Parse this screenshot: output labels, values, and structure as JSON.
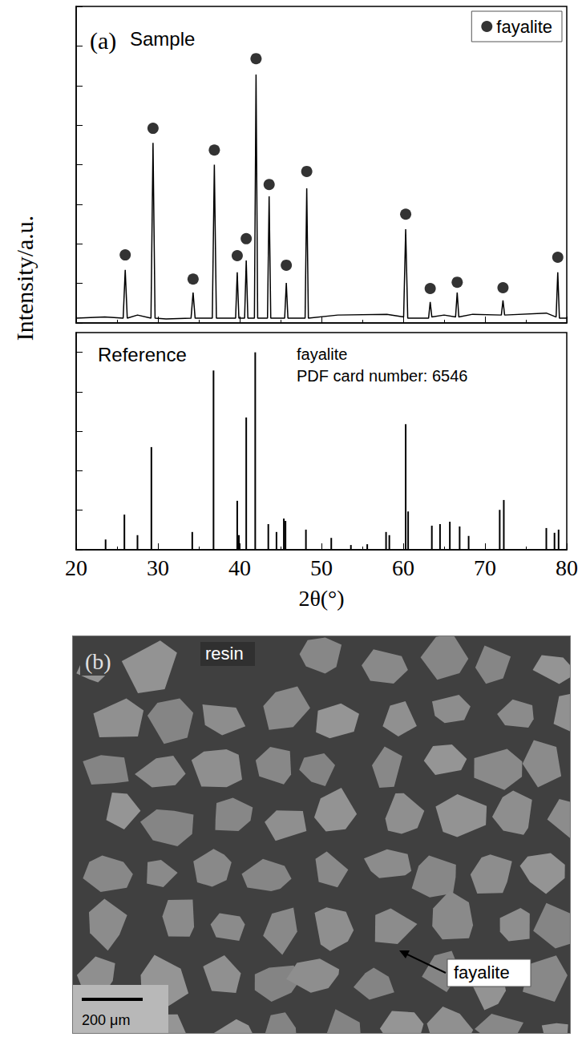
{
  "chart_data": [
    {
      "type": "line",
      "panel_label": "(a)",
      "title": "Sample",
      "ylabel": "Intensity/a.u.",
      "xlim": [
        20,
        80
      ],
      "xticks": [
        20,
        30,
        40,
        50,
        60,
        70,
        80
      ],
      "ylim": [
        0,
        8
      ],
      "yticks": [
        0,
        1,
        2,
        3,
        4,
        5,
        6,
        7,
        8
      ],
      "tick_labels": false,
      "grid": false,
      "legend": "upper right",
      "series": [
        {
          "type": "line",
          "color": "#000000",
          "line_style": "solid",
          "x": [
            20,
            23.5,
            25.75,
            26.0,
            26.25,
            27.5,
            29.15,
            29.4,
            29.65,
            31.0,
            34.05,
            34.3,
            34.55,
            36.65,
            36.9,
            37.15,
            39.5,
            39.7,
            39.9,
            40.6,
            40.8,
            41.0,
            41.8,
            42.0,
            42.2,
            43.4,
            43.6,
            43.8,
            45.5,
            45.7,
            45.9,
            48.0,
            48.2,
            48.4,
            52.0,
            58.0,
            60.05,
            60.3,
            60.55,
            63.1,
            63.3,
            63.5,
            65.0,
            66.4,
            66.6,
            66.8,
            68.5,
            72.0,
            72.2,
            72.4,
            77.5,
            78.7,
            78.9,
            79.1,
            80
          ],
          "values": [
            0.12,
            0.15,
            0.12,
            1.34,
            0.12,
            0.2,
            0.12,
            4.55,
            0.12,
            0.1,
            0.12,
            0.77,
            0.12,
            0.12,
            4.0,
            0.12,
            0.12,
            1.28,
            0.12,
            0.12,
            1.58,
            0.12,
            0.12,
            6.28,
            0.12,
            0.12,
            3.2,
            0.12,
            0.12,
            1.01,
            0.12,
            0.12,
            3.4,
            0.12,
            0.2,
            0.22,
            0.15,
            2.37,
            0.12,
            0.12,
            0.53,
            0.15,
            0.2,
            0.15,
            0.77,
            0.15,
            0.22,
            0.2,
            0.57,
            0.2,
            0.25,
            0.15,
            1.28,
            0.12,
            0.12
          ]
        },
        {
          "name": "fayalite",
          "type": "scatter",
          "marker": "circle",
          "color": "#000000",
          "x": [
            26.0,
            29.4,
            34.3,
            36.9,
            39.7,
            40.8,
            42.0,
            43.6,
            45.7,
            48.2,
            60.3,
            63.3,
            66.6,
            72.2,
            78.9
          ],
          "values": [
            1.72,
            4.92,
            1.11,
            4.37,
            1.7,
            2.13,
            6.68,
            3.5,
            1.46,
            3.83,
            2.75,
            0.87,
            1.03,
            0.89,
            1.66
          ]
        }
      ]
    },
    {
      "type": "bar",
      "title": "Reference",
      "annotations": [
        "fayalite",
        "PDF card number: 6546"
      ],
      "xlabel": "2θ(°)",
      "xlim": [
        20,
        80
      ],
      "xticks": [
        20,
        30,
        40,
        50,
        60,
        70,
        80
      ],
      "ylim": [
        0,
        5.5
      ],
      "yticks": [
        0,
        1,
        2,
        3,
        4,
        5
      ],
      "tick_labels": "x",
      "grid": false,
      "color": "#000000",
      "x": [
        23.6,
        25.9,
        27.5,
        29.2,
        34.2,
        36.8,
        39.7,
        39.9,
        40.8,
        41.9,
        43.5,
        44.5,
        45.4,
        45.6,
        48.1,
        51.2,
        53.6,
        55.6,
        57.9,
        58.3,
        60.3,
        60.6,
        63.5,
        64.5,
        65.7,
        66.9,
        68.0,
        71.8,
        72.3,
        77.5,
        78.5,
        79.0
      ],
      "values": [
        0.26,
        0.89,
        0.37,
        2.6,
        0.45,
        4.54,
        1.24,
        0.37,
        3.35,
        5.0,
        0.65,
        0.45,
        0.79,
        0.73,
        0.51,
        0.3,
        0.12,
        0.14,
        0.45,
        0.37,
        3.18,
        0.97,
        0.61,
        0.65,
        0.71,
        0.59,
        0.35,
        1.01,
        1.26,
        0.55,
        0.43,
        0.51
      ]
    }
  ],
  "image_panel": {
    "label": "(b)",
    "texts": {
      "matrix": "resin",
      "phase": "fayalite",
      "scale_bar": "200 μm"
    }
  }
}
